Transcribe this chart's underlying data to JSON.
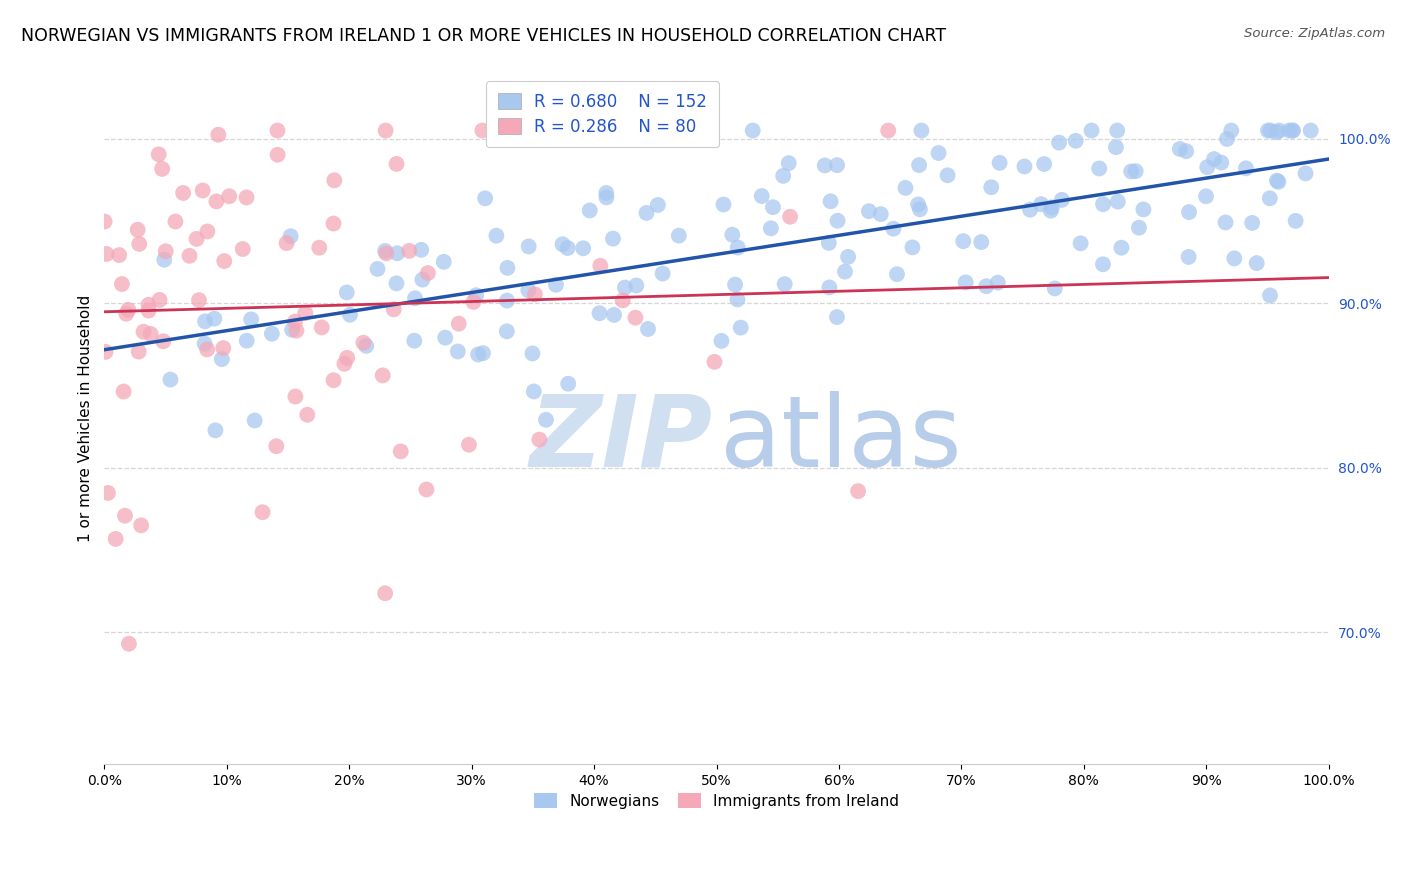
{
  "title": "NORWEGIAN VS IMMIGRANTS FROM IRELAND 1 OR MORE VEHICLES IN HOUSEHOLD CORRELATION CHART",
  "source": "Source: ZipAtlas.com",
  "ylabel": "1 or more Vehicles in Household",
  "legend_label_1": "Norwegians",
  "legend_label_2": "Immigrants from Ireland",
  "R1": 0.68,
  "N1": 152,
  "R2": 0.286,
  "N2": 80,
  "scatter_color_1": "#a8c8f0",
  "scatter_color_2": "#f4a8b8",
  "line_color_1": "#2255aa",
  "line_color_2": "#cc3355",
  "legend_color_1": "#a8c8f0",
  "legend_color_2": "#f4a8b8",
  "text_color_blue": "#2255cc",
  "text_color_pink": "#cc3355",
  "background_color": "#ffffff",
  "xlim": [
    0.0,
    1.0
  ],
  "ylim": [
    0.62,
    1.04
  ]
}
